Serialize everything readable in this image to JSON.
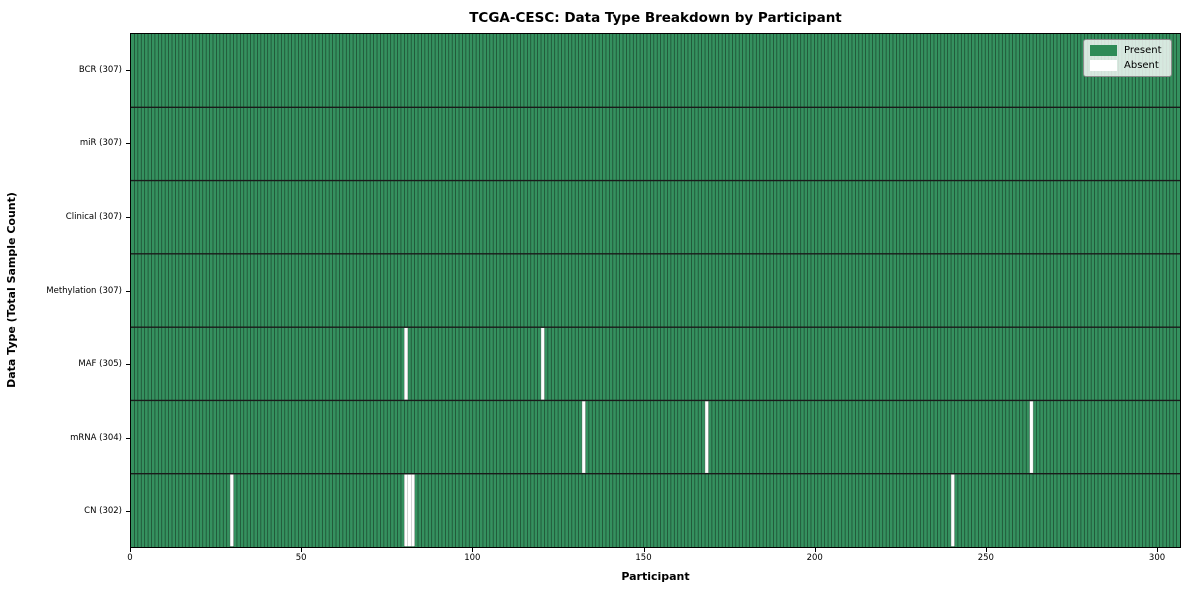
{
  "chart_data": {
    "type": "heatmap",
    "title": "TCGA-CESC: Data Type Breakdown by Participant",
    "xlabel": "Participant",
    "ylabel": "Data Type (Total Sample Count)",
    "x_ticks": [
      0,
      50,
      100,
      150,
      200,
      250,
      300
    ],
    "x_range": [
      0,
      307
    ],
    "n_participants": 307,
    "rows": [
      {
        "label": "BCR (307)",
        "data_type": "BCR",
        "total": 307,
        "absent_participants": []
      },
      {
        "label": "miR (307)",
        "data_type": "miR",
        "total": 307,
        "absent_participants": []
      },
      {
        "label": "Clinical (307)",
        "data_type": "Clinical",
        "total": 307,
        "absent_participants": []
      },
      {
        "label": "Methylation (307)",
        "data_type": "Methylation",
        "total": 307,
        "absent_participants": []
      },
      {
        "label": "MAF (305)",
        "data_type": "MAF",
        "total": 305,
        "absent_participants": [
          80,
          120
        ]
      },
      {
        "label": "mRNA (304)",
        "data_type": "mRNA",
        "total": 304,
        "absent_participants": [
          132,
          168,
          263
        ]
      },
      {
        "label": "CN (302)",
        "data_type": "CN",
        "total": 302,
        "absent_participants": [
          29,
          80,
          81,
          82,
          240
        ]
      }
    ],
    "legend": {
      "position": "upper right",
      "items": [
        {
          "label": "Present",
          "color": "#2E8B57"
        },
        {
          "label": "Absent",
          "color": "#FFFFFF"
        }
      ]
    },
    "colors": {
      "present": "#35915F",
      "absent": "#FFFFFF",
      "cell_edge": "#1C4A30",
      "absent_edge": "#999999",
      "row_divider": "#1A1A1A",
      "axis": "#000000"
    },
    "grid": false,
    "layout": {
      "legend_position": "upper right"
    }
  }
}
